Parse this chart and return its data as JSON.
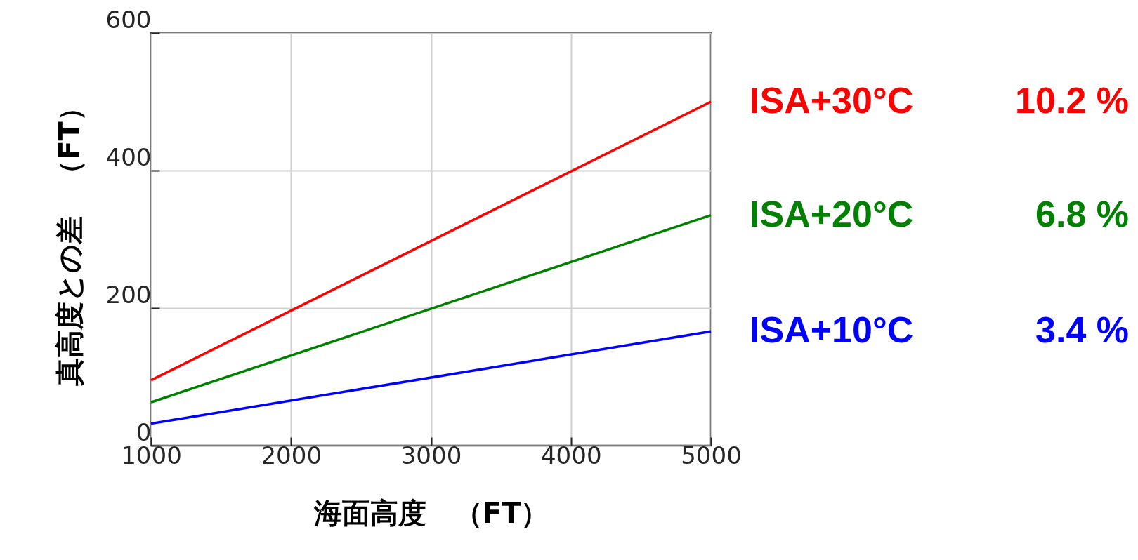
{
  "chart_data": {
    "type": "line",
    "xlabel": "海面高度　（FT）",
    "ylabel": "真高度との差　（FT）",
    "x": [
      1000,
      5000
    ],
    "xlim": [
      1000,
      5000
    ],
    "xticks": [
      1000,
      2000,
      3000,
      4000,
      5000
    ],
    "ylim": [
      0,
      600
    ],
    "yticks": [
      0,
      200,
      400,
      600
    ],
    "series": [
      {
        "name": "ISA+30°C",
        "color": "#ff0000",
        "values": [
          95,
          500
        ]
      },
      {
        "name": "ISA+20°C",
        "color": "#008000",
        "values": [
          63,
          335
        ]
      },
      {
        "name": "ISA+10°C",
        "color": "#0000ff",
        "values": [
          32,
          166
        ]
      }
    ],
    "annotations": [
      "10.2 %",
      "6.8 %",
      "3.4 %"
    ],
    "grid": true,
    "legend": false,
    "marker": "none",
    "line_style": "solid"
  }
}
